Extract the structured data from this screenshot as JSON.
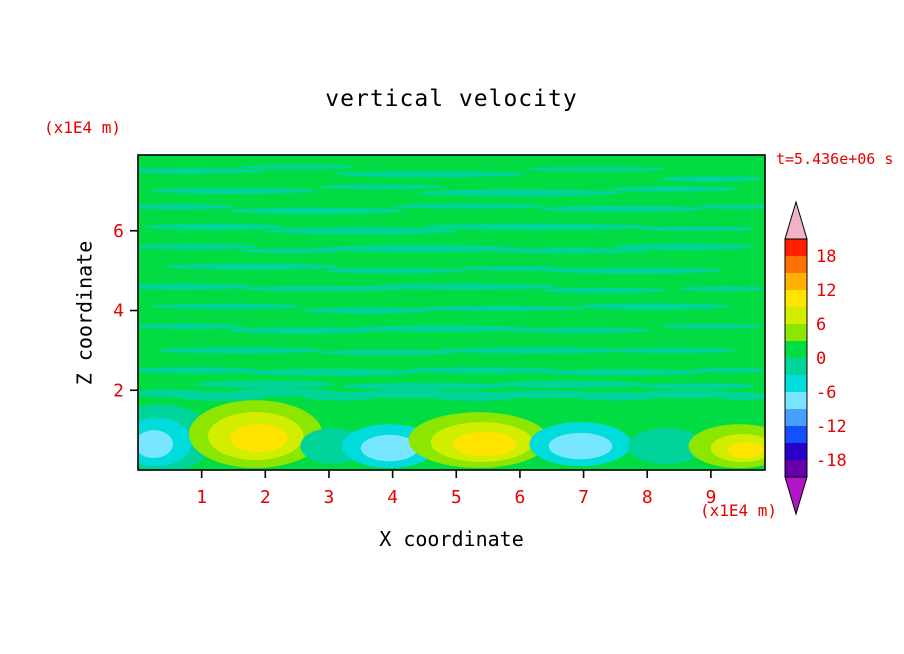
{
  "chart_data": {
    "type": "heatmap",
    "title": "vertical velocity",
    "time_annotation": "t=5.436e+06 s",
    "xlabel": "X coordinate",
    "x_unit": "(x1E4 m)",
    "ylabel": "Z coordinate",
    "y_unit": "(x1E4 m)",
    "x_range": [
      0,
      9.85
    ],
    "z_range": [
      0,
      7.9
    ],
    "x_ticks": [
      1,
      2,
      3,
      4,
      5,
      6,
      7,
      8,
      9
    ],
    "y_ticks": [
      2,
      4,
      6
    ],
    "colorbar": {
      "min": -21,
      "max": 21,
      "step": 3,
      "tick_labels": [
        18,
        12,
        6,
        0,
        -6,
        -12,
        -18
      ],
      "segment_colors": [
        "#ff2000",
        "#ff7000",
        "#ffb000",
        "#ffe400",
        "#d2ee00",
        "#8ce600",
        "#00dc41",
        "#00d49b",
        "#00dcdc",
        "#78e6ff",
        "#46a0ff",
        "#1450ff",
        "#2800c8",
        "#6400aa"
      ],
      "over_color": "#f0b4c8",
      "under_color": "#b414c8"
    },
    "field": {
      "background_value_range": [
        0,
        3
      ],
      "background_color": "#00dc41",
      "streak_value_range": [
        -3,
        0
      ],
      "streak_color": "#00d49b",
      "streaks": [
        [
          0.8,
          7.5,
          1.2,
          0.07
        ],
        [
          2.5,
          7.6,
          0.9,
          0.06
        ],
        [
          4.6,
          7.42,
          1.5,
          0.08
        ],
        [
          7.2,
          7.55,
          1.1,
          0.06
        ],
        [
          9.0,
          7.3,
          0.8,
          0.07
        ],
        [
          1.5,
          7.0,
          1.3,
          0.08
        ],
        [
          3.8,
          7.1,
          1.0,
          0.06
        ],
        [
          6.0,
          6.95,
          1.6,
          0.09
        ],
        [
          8.4,
          7.05,
          1.0,
          0.07
        ],
        [
          0.6,
          6.6,
          0.9,
          0.07
        ],
        [
          2.8,
          6.5,
          1.4,
          0.08
        ],
        [
          5.2,
          6.62,
          1.2,
          0.07
        ],
        [
          7.6,
          6.55,
          1.3,
          0.08
        ],
        [
          9.4,
          6.6,
          0.6,
          0.06
        ],
        [
          1.2,
          6.1,
          1.1,
          0.08
        ],
        [
          3.5,
          6.0,
          1.5,
          0.09
        ],
        [
          6.3,
          6.1,
          1.8,
          0.08
        ],
        [
          8.8,
          6.05,
          0.9,
          0.06
        ],
        [
          0.9,
          5.6,
          1.0,
          0.07
        ],
        [
          2.4,
          5.5,
          0.8,
          0.06
        ],
        [
          4.4,
          5.55,
          1.6,
          0.09
        ],
        [
          6.8,
          5.5,
          1.2,
          0.07
        ],
        [
          8.6,
          5.6,
          1.1,
          0.08
        ],
        [
          1.8,
          5.1,
          1.4,
          0.08
        ],
        [
          4.0,
          5.0,
          1.1,
          0.07
        ],
        [
          5.9,
          5.05,
          0.9,
          0.06
        ],
        [
          7.8,
          5.0,
          1.4,
          0.08
        ],
        [
          0.7,
          4.6,
          1.1,
          0.08
        ],
        [
          2.9,
          4.55,
          1.3,
          0.07
        ],
        [
          5.1,
          4.6,
          1.5,
          0.08
        ],
        [
          7.3,
          4.5,
          1.0,
          0.07
        ],
        [
          9.2,
          4.55,
          0.7,
          0.06
        ],
        [
          1.4,
          4.1,
          1.2,
          0.07
        ],
        [
          3.6,
          4.0,
          1.0,
          0.08
        ],
        [
          5.7,
          4.05,
          1.3,
          0.07
        ],
        [
          8.1,
          4.1,
          1.2,
          0.08
        ],
        [
          0.8,
          3.6,
          0.9,
          0.07
        ],
        [
          2.6,
          3.5,
          1.2,
          0.08
        ],
        [
          4.8,
          3.55,
          1.4,
          0.08
        ],
        [
          7.0,
          3.5,
          1.1,
          0.07
        ],
        [
          9.0,
          3.6,
          0.8,
          0.06
        ],
        [
          1.6,
          3.0,
          1.3,
          0.08
        ],
        [
          3.9,
          2.95,
          1.1,
          0.07
        ],
        [
          6.2,
          3.0,
          1.5,
          0.08
        ],
        [
          8.4,
          3.0,
          1.0,
          0.07
        ],
        [
          0.9,
          2.5,
          1.0,
          0.08
        ],
        [
          3.0,
          2.45,
          1.4,
          0.09
        ],
        [
          5.4,
          2.5,
          1.2,
          0.08
        ],
        [
          7.6,
          2.45,
          1.3,
          0.08
        ],
        [
          9.3,
          2.5,
          0.6,
          0.06
        ],
        [
          2.0,
          2.15,
          1.1,
          0.09
        ],
        [
          4.5,
          2.1,
          1.3,
          0.09
        ],
        [
          6.8,
          2.15,
          1.2,
          0.09
        ],
        [
          8.8,
          2.1,
          0.9,
          0.08
        ],
        [
          0.5,
          1.92,
          0.6,
          0.1
        ],
        [
          1.3,
          1.85,
          0.7,
          0.12
        ],
        [
          2.3,
          1.95,
          0.8,
          0.1
        ],
        [
          3.2,
          1.85,
          0.6,
          0.11
        ],
        [
          4.2,
          1.9,
          0.9,
          0.1
        ],
        [
          5.3,
          1.85,
          0.7,
          0.12
        ],
        [
          6.4,
          1.9,
          0.8,
          0.1
        ],
        [
          7.5,
          1.85,
          0.7,
          0.11
        ],
        [
          8.6,
          1.9,
          0.8,
          0.1
        ],
        [
          9.5,
          1.85,
          0.4,
          0.1
        ]
      ],
      "blobs": [
        {
          "x": 0.35,
          "z": 0.8,
          "rx": 0.85,
          "rz": 0.85,
          "color": "#00d49b"
        },
        {
          "x": 0.3,
          "z": 0.7,
          "rx": 0.55,
          "rz": 0.6,
          "color": "#00dcdc"
        },
        {
          "x": 0.25,
          "z": 0.65,
          "rx": 0.3,
          "rz": 0.35,
          "color": "#78e6ff"
        },
        {
          "x": 1.85,
          "z": 0.9,
          "rx": 1.05,
          "rz": 0.85,
          "color": "#8ce600"
        },
        {
          "x": 1.85,
          "z": 0.85,
          "rx": 0.75,
          "rz": 0.6,
          "color": "#d2ee00"
        },
        {
          "x": 1.9,
          "z": 0.8,
          "rx": 0.45,
          "rz": 0.35,
          "color": "#ffe400"
        },
        {
          "x": 3.05,
          "z": 0.6,
          "rx": 0.5,
          "rz": 0.45,
          "color": "#00d49b"
        },
        {
          "x": 3.95,
          "z": 0.6,
          "rx": 0.75,
          "rz": 0.55,
          "color": "#00dcdc"
        },
        {
          "x": 3.95,
          "z": 0.55,
          "rx": 0.45,
          "rz": 0.33,
          "color": "#78e6ff"
        },
        {
          "x": 5.35,
          "z": 0.75,
          "rx": 1.1,
          "rz": 0.7,
          "color": "#8ce600"
        },
        {
          "x": 5.4,
          "z": 0.7,
          "rx": 0.8,
          "rz": 0.5,
          "color": "#d2ee00"
        },
        {
          "x": 5.45,
          "z": 0.65,
          "rx": 0.5,
          "rz": 0.3,
          "color": "#ffe400"
        },
        {
          "x": 6.95,
          "z": 0.65,
          "rx": 0.8,
          "rz": 0.55,
          "color": "#00dcdc"
        },
        {
          "x": 6.95,
          "z": 0.6,
          "rx": 0.5,
          "rz": 0.33,
          "color": "#78e6ff"
        },
        {
          "x": 8.3,
          "z": 0.6,
          "rx": 0.6,
          "rz": 0.45,
          "color": "#00d49b"
        },
        {
          "x": 9.45,
          "z": 0.6,
          "rx": 0.8,
          "rz": 0.55,
          "color": "#8ce600"
        },
        {
          "x": 9.5,
          "z": 0.55,
          "rx": 0.5,
          "rz": 0.35,
          "color": "#d2ee00"
        },
        {
          "x": 9.55,
          "z": 0.5,
          "rx": 0.28,
          "rz": 0.2,
          "color": "#ffe400"
        }
      ]
    }
  }
}
